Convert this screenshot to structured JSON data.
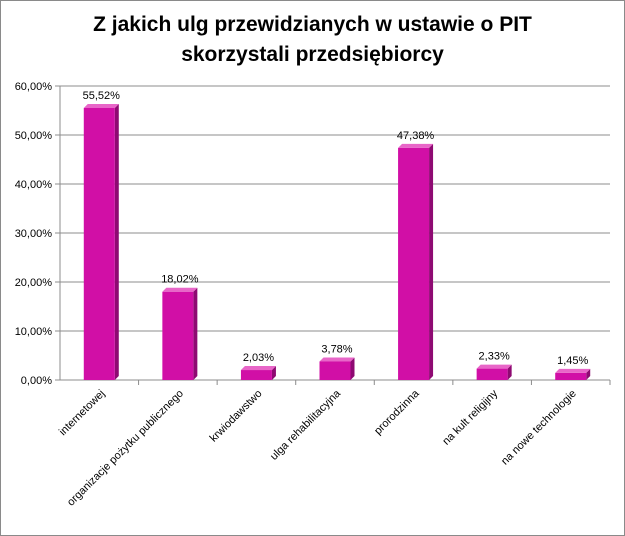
{
  "chart_data": {
    "type": "bar",
    "title": "Z jakich ulg przewidzianych w ustawie o PIT\nskorzystali przedsiębiorcy",
    "categories": [
      "internetowej",
      "organizacje pożytku publicznego",
      "krwiodawstwo",
      "ulga rehabilitacyjna",
      "prorodzinna",
      "na kult religijny",
      "na nowe technologie"
    ],
    "values": [
      55.52,
      18.02,
      2.03,
      3.78,
      47.38,
      2.33,
      1.45
    ],
    "data_labels": [
      "55,52%",
      "18,02%",
      "2,03%",
      "3,78%",
      "47,38%",
      "2,33%",
      "1,45%"
    ],
    "y_ticks": [
      0,
      10,
      20,
      30,
      40,
      50,
      60
    ],
    "y_tick_labels": [
      "0,00%",
      "10,00%",
      "20,00%",
      "30,00%",
      "40,00%",
      "50,00%",
      "60,00%"
    ],
    "ylim": [
      0,
      60
    ],
    "xlabel": "",
    "ylabel": "",
    "grid": true,
    "legend": "none",
    "bar_color": "#d10fa6",
    "bar_top_color": "#e866c8"
  }
}
